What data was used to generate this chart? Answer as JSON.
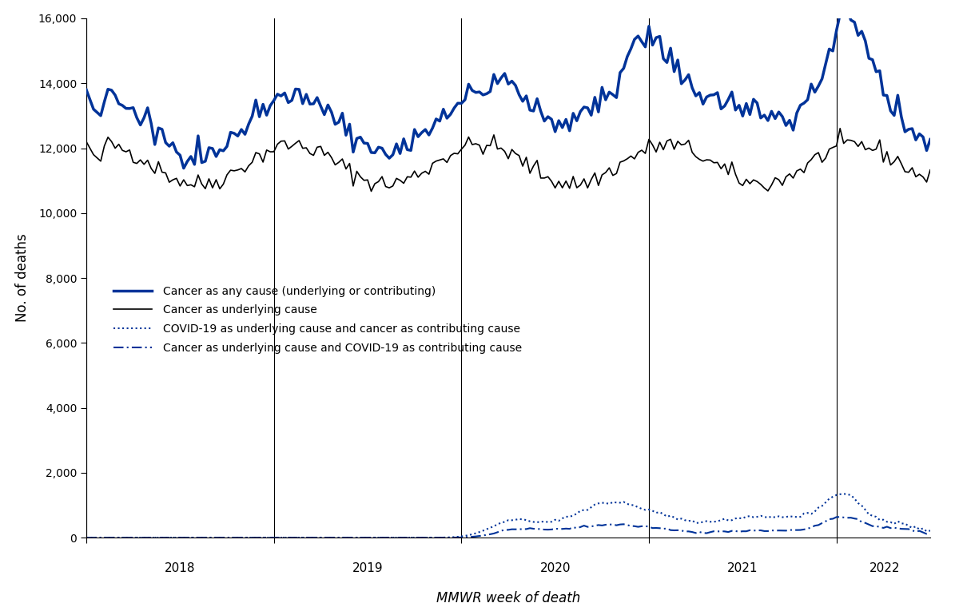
{
  "title": "",
  "xlabel": "MMWR week of death",
  "ylabel": "No. of deaths",
  "ylim": [
    0,
    16000
  ],
  "yticks": [
    0,
    2000,
    4000,
    6000,
    8000,
    10000,
    12000,
    14000,
    16000
  ],
  "blue_color": "#003399",
  "black_color": "#000000",
  "background_color": "#ffffff",
  "n_weeks": 235,
  "year_positions": [
    0,
    52,
    104,
    156,
    208
  ],
  "year_mid_positions": [
    26,
    78,
    130,
    182,
    221.5
  ],
  "year_labels": [
    "2018",
    "2019",
    "2020",
    "2021",
    "2022"
  ],
  "legend_labels": [
    "Cancer as any cause (underlying or contributing)",
    "Cancer as underlying cause",
    "COVID-19 as underlying cause and cancer as contributing cause",
    "Cancer as underlying cause and COVID-19 as contributing cause"
  ]
}
